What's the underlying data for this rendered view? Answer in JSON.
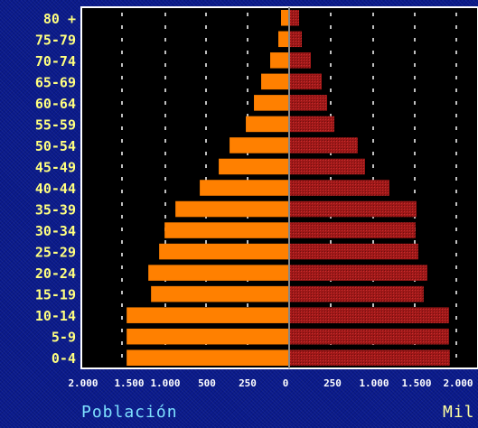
{
  "chart_data": {
    "type": "bar",
    "categories": [
      "0-4",
      "5-9",
      "10-14",
      "15-19",
      "20-24",
      "25-29",
      "30-34",
      "35-39",
      "40-44",
      "45-49",
      "50-54",
      "55-59",
      "60-64",
      "65-69",
      "70-74",
      "75-79",
      "80 +"
    ],
    "series": [
      {
        "values": [
          1800,
          1800,
          1800,
          1530,
          1560,
          1440,
          1380,
          1260,
          990,
          780,
          660,
          480,
          390,
          310,
          210,
          120,
          90
        ]
      },
      {
        "values": [
          1780,
          1770,
          1770,
          1490,
          1530,
          1430,
          1400,
          1410,
          1110,
          840,
          760,
          500,
          420,
          360,
          240,
          140,
          110
        ]
      }
    ],
    "xlim": [
      -2000,
      2000
    ],
    "xticks": [
      "2.000",
      "1.500",
      "1.000",
      "500",
      "250",
      "0",
      "250",
      "1.000",
      "1.500",
      "2.000"
    ],
    "colors": {
      "left": "#ff8000",
      "right": "#a01818",
      "center_line": "#888888"
    },
    "grid": true
  },
  "footer": {
    "left_label": "Población",
    "right_label": "Mil"
  }
}
